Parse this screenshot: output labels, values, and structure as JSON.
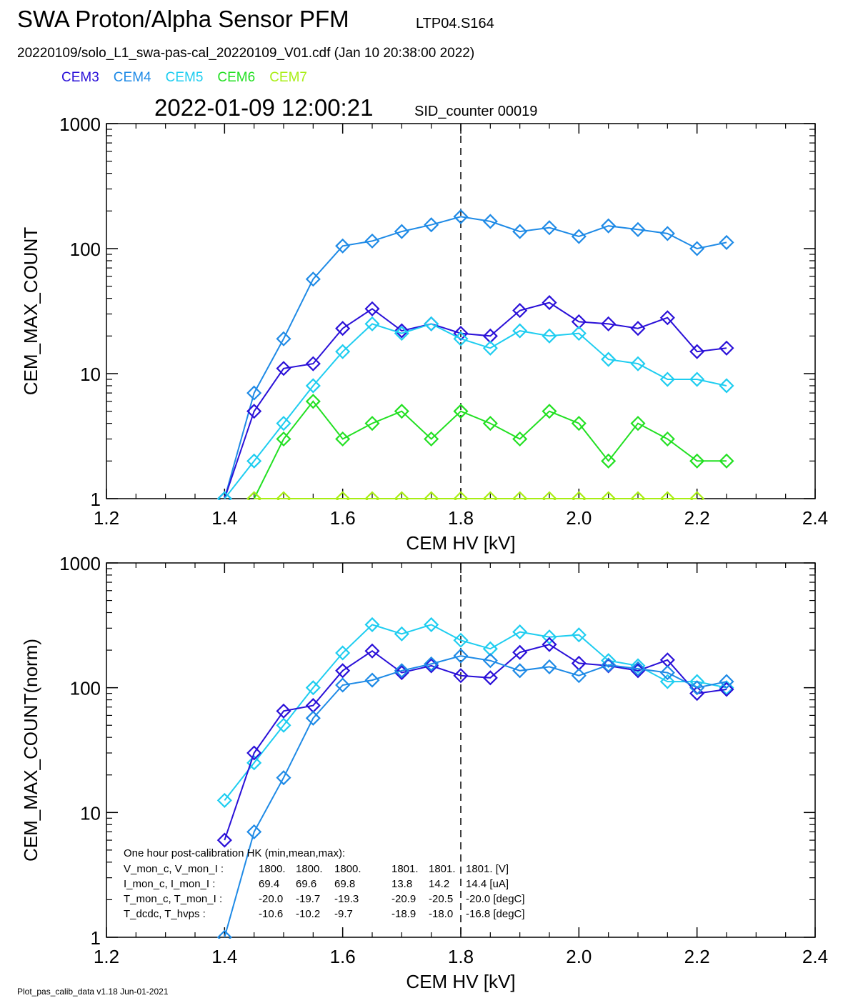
{
  "header": {
    "title": "SWA Proton/Alpha Sensor PFM",
    "title_sub": "LTP04.S164",
    "file_line": "20220109/solo_L1_swa-pas-cal_20220109_V01.cdf  (Jan 10 20:38:00 2022)",
    "timestamp": "2022-01-09 12:00:21",
    "sid_counter": "SID_counter 00019"
  },
  "legend": [
    {
      "name": "CEM3",
      "color": "#2a10d8"
    },
    {
      "name": "CEM4",
      "color": "#1e8ae6"
    },
    {
      "name": "CEM5",
      "color": "#1ecdf0"
    },
    {
      "name": "CEM6",
      "color": "#22e022"
    },
    {
      "name": "CEM7",
      "color": "#a8ee14"
    }
  ],
  "footer": "Plot_pas_calib_data v1.18 Jun-01-2021",
  "hk_table": {
    "heading": "One hour post-calibration HK (min,mean,max):",
    "rows": [
      {
        "label": "V_mon_c, V_mon_I :",
        "c": [
          "1800.",
          "1800.",
          "1800."
        ],
        "i": [
          "1801.",
          "1801.",
          "1801. [V]"
        ]
      },
      {
        "label": "I_mon_c,  I_mon_I :",
        "c": [
          "69.4",
          "69.6",
          "69.8"
        ],
        "i": [
          "13.8",
          "14.2",
          "14.4  [uA]"
        ]
      },
      {
        "label": "T_mon_c, T_mon_I :",
        "c": [
          "-20.0",
          "-19.7",
          "-19.3"
        ],
        "i": [
          "-20.9",
          "-20.5",
          "-20.0  [degC]"
        ]
      },
      {
        "label": "T_dcdc,    T_hvps :",
        "c": [
          "-10.6",
          "-10.2",
          "-9.7"
        ],
        "i": [
          "-18.9",
          "-18.0",
          "-16.8  [degC]"
        ]
      }
    ]
  },
  "chart_data": [
    {
      "type": "line",
      "title": "",
      "xlabel": "CEM HV [kV]",
      "ylabel": "CEM_MAX_COUNT",
      "xlim": [
        1.2,
        2.4
      ],
      "ylim": [
        1,
        1000
      ],
      "yscale": "log",
      "x_ticks": [
        "1.2",
        "1.4",
        "1.6",
        "1.8",
        "2.0",
        "2.2",
        "2.4"
      ],
      "y_ticks": [
        "1",
        "10",
        "100",
        "1000"
      ],
      "vline_x": 1.8,
      "series": [
        {
          "name": "CEM4",
          "color": "#1e8ae6",
          "x": [
            1.4,
            1.45,
            1.5,
            1.55,
            1.6,
            1.65,
            1.7,
            1.75,
            1.8,
            1.85,
            1.9,
            1.95,
            2.0,
            2.05,
            2.1,
            2.15,
            2.2,
            2.25
          ],
          "y": [
            1,
            7,
            19,
            57,
            105,
            115,
            137,
            155,
            180,
            165,
            137,
            147,
            125,
            152,
            142,
            132,
            100,
            112
          ]
        },
        {
          "name": "CEM3",
          "color": "#2a10d8",
          "x": [
            1.4,
            1.45,
            1.5,
            1.55,
            1.6,
            1.65,
            1.7,
            1.75,
            1.8,
            1.85,
            1.9,
            1.95,
            2.0,
            2.05,
            2.1,
            2.15,
            2.2,
            2.25
          ],
          "y": [
            1,
            5,
            11,
            12,
            23,
            33,
            22,
            25,
            21,
            20,
            32,
            37,
            26,
            25,
            23,
            28,
            15,
            16
          ]
        },
        {
          "name": "CEM5",
          "color": "#1ecdf0",
          "x": [
            1.4,
            1.45,
            1.5,
            1.55,
            1.6,
            1.65,
            1.7,
            1.75,
            1.8,
            1.85,
            1.9,
            1.95,
            2.0,
            2.05,
            2.1,
            2.15,
            2.2,
            2.25
          ],
          "y": [
            1,
            2,
            4,
            8,
            15,
            25,
            21,
            25,
            19,
            16,
            22,
            20,
            21,
            13,
            12,
            9,
            9,
            8
          ]
        },
        {
          "name": "CEM6",
          "color": "#22e022",
          "x": [
            1.45,
            1.5,
            1.55,
            1.6,
            1.65,
            1.7,
            1.75,
            1.8,
            1.85,
            1.9,
            1.95,
            2.0,
            2.05,
            2.1,
            2.15,
            2.2,
            2.25
          ],
          "y": [
            1,
            3,
            6,
            3,
            4,
            5,
            3,
            5,
            4,
            3,
            5,
            4,
            2,
            4,
            3,
            2,
            2
          ]
        },
        {
          "name": "CEM7",
          "color": "#a8ee14",
          "x": [
            1.45,
            1.5,
            1.6,
            1.65,
            1.7,
            1.75,
            1.8,
            1.85,
            1.9,
            1.95,
            2.0,
            2.05,
            2.1,
            2.15,
            2.2
          ],
          "y": [
            1,
            1,
            1,
            1,
            1,
            1,
            1,
            1,
            1,
            1,
            1,
            1,
            1,
            1,
            1
          ]
        }
      ]
    },
    {
      "type": "line",
      "title": "",
      "xlabel": "CEM HV [kV]",
      "ylabel": "CEM_MAX_COUNT(norm)",
      "xlim": [
        1.2,
        2.4
      ],
      "ylim": [
        1,
        1000
      ],
      "yscale": "log",
      "x_ticks": [
        "1.2",
        "1.4",
        "1.6",
        "1.8",
        "2.0",
        "2.2",
        "2.4"
      ],
      "y_ticks": [
        "1",
        "10",
        "100",
        "1000"
      ],
      "vline_x": 1.8,
      "series": [
        {
          "name": "CEM5",
          "color": "#1ecdf0",
          "x": [
            1.4,
            1.45,
            1.5,
            1.55,
            1.6,
            1.65,
            1.7,
            1.75,
            1.8,
            1.85,
            1.9,
            1.95,
            2.0,
            2.05,
            2.1,
            2.15,
            2.2,
            2.25
          ],
          "y": [
            12.5,
            25,
            50,
            100,
            190,
            320,
            270,
            320,
            240,
            205,
            280,
            255,
            265,
            165,
            150,
            112,
            112,
            100
          ]
        },
        {
          "name": "CEM3",
          "color": "#2a10d8",
          "x": [
            1.4,
            1.45,
            1.5,
            1.55,
            1.6,
            1.65,
            1.7,
            1.75,
            1.8,
            1.85,
            1.9,
            1.95,
            2.0,
            2.05,
            2.1,
            2.15,
            2.2,
            2.25
          ],
          "y": [
            6,
            30,
            65,
            72,
            137,
            197,
            132,
            150,
            125,
            120,
            192,
            222,
            157,
            150,
            137,
            167,
            90,
            97
          ]
        },
        {
          "name": "CEM4",
          "color": "#1e8ae6",
          "x": [
            1.4,
            1.45,
            1.5,
            1.55,
            1.6,
            1.65,
            1.7,
            1.75,
            1.8,
            1.85,
            1.9,
            1.95,
            2.0,
            2.05,
            2.1,
            2.15,
            2.2,
            2.25
          ],
          "y": [
            1,
            7,
            19,
            57,
            105,
            115,
            137,
            155,
            180,
            165,
            137,
            147,
            125,
            152,
            142,
            132,
            100,
            112
          ]
        }
      ]
    }
  ]
}
